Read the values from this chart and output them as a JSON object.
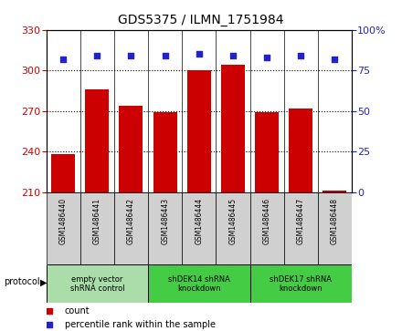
{
  "title": "GDS5375 / ILMN_1751984",
  "samples": [
    "GSM1486440",
    "GSM1486441",
    "GSM1486442",
    "GSM1486443",
    "GSM1486444",
    "GSM1486445",
    "GSM1486446",
    "GSM1486447",
    "GSM1486448"
  ],
  "counts": [
    238,
    286,
    274,
    269,
    300,
    304,
    269,
    272,
    211
  ],
  "percentile_ranks": [
    82,
    84,
    84,
    84,
    85,
    84,
    83,
    84,
    82
  ],
  "ylim_left": [
    210,
    330
  ],
  "ylim_right": [
    0,
    100
  ],
  "yticks_left": [
    210,
    240,
    270,
    300,
    330
  ],
  "yticks_right": [
    0,
    25,
    50,
    75,
    100
  ],
  "bar_color": "#cc0000",
  "dot_color": "#2222cc",
  "protocol_groups": [
    {
      "label": "empty vector\nshRNA control",
      "start": 0,
      "end": 3,
      "color": "#aaddaa"
    },
    {
      "label": "shDEK14 shRNA\nknockdown",
      "start": 3,
      "end": 6,
      "color": "#44cc44"
    },
    {
      "label": "shDEK17 shRNA\nknockdown",
      "start": 6,
      "end": 9,
      "color": "#44cc44"
    }
  ],
  "protocol_label": "protocol",
  "legend_count_label": "count",
  "legend_percentile_label": "percentile rank within the sample",
  "tick_label_color_left": "#cc0000",
  "tick_label_color_right": "#2222cc",
  "bg_color": "#d0d0d0",
  "gridline_yticks": [
    240,
    270,
    300
  ]
}
